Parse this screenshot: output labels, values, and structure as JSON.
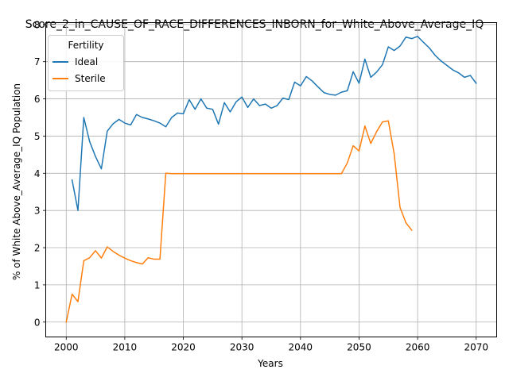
{
  "chart_data": {
    "type": "line",
    "title": "Score_2_in_CAUSE_OF_RACE_DIFFERENCES_INBORN_for_White_Above_Average_IQ",
    "xlabel": "Years",
    "ylabel": "% of White Above_Average_IQ Population",
    "xlim": [
      1996.5,
      2073.5
    ],
    "ylim": [
      -0.4,
      8.05
    ],
    "xticks": [
      2000,
      2010,
      2020,
      2030,
      2040,
      2050,
      2060,
      2070
    ],
    "yticks": [
      0,
      1,
      2,
      3,
      4,
      5,
      6,
      7,
      8
    ],
    "grid": true,
    "legend": {
      "title": "Fertility",
      "position": "top-left"
    },
    "series": [
      {
        "name": "Ideal",
        "color": "#1f77b4",
        "x": [
          2001,
          2002,
          2003,
          2004,
          2005,
          2006,
          2007,
          2008,
          2009,
          2010,
          2011,
          2012,
          2013,
          2014,
          2015,
          2016,
          2017,
          2018,
          2019,
          2020,
          2021,
          2022,
          2023,
          2024,
          2025,
          2026,
          2027,
          2028,
          2029,
          2030,
          2031,
          2032,
          2033,
          2034,
          2035,
          2036,
          2037,
          2038,
          2039,
          2040,
          2041,
          2042,
          2043,
          2044,
          2045,
          2046,
          2047,
          2048,
          2049,
          2050,
          2051,
          2052,
          2053,
          2054,
          2055,
          2056,
          2057,
          2058,
          2059,
          2060,
          2061,
          2062,
          2063,
          2064,
          2065,
          2066,
          2067,
          2068,
          2069,
          2070
        ],
        "y": [
          3.82,
          3.0,
          5.5,
          4.85,
          4.45,
          4.12,
          5.13,
          5.33,
          5.45,
          5.35,
          5.3,
          5.58,
          5.5,
          5.46,
          5.41,
          5.35,
          5.25,
          5.5,
          5.62,
          5.6,
          5.98,
          5.72,
          6.0,
          5.75,
          5.72,
          5.32,
          5.9,
          5.65,
          5.92,
          6.05,
          5.77,
          6.0,
          5.82,
          5.86,
          5.75,
          5.82,
          6.02,
          5.98,
          6.45,
          6.35,
          6.6,
          6.48,
          6.32,
          6.17,
          6.12,
          6.1,
          6.18,
          6.22,
          6.73,
          6.42,
          7.07,
          6.58,
          6.72,
          6.92,
          7.4,
          7.3,
          7.42,
          7.66,
          7.62,
          7.68,
          7.52,
          7.37,
          7.17,
          7.02,
          6.9,
          6.78,
          6.7,
          6.58,
          6.63,
          6.42
        ]
      },
      {
        "name": "Sterile",
        "color": "#ff7f0e",
        "x": [
          2000,
          2001,
          2002,
          2003,
          2004,
          2005,
          2006,
          2007,
          2008,
          2009,
          2010,
          2011,
          2012,
          2013,
          2014,
          2015,
          2016,
          2017,
          2018,
          2019,
          2020,
          2021,
          2022,
          2023,
          2024,
          2025,
          2026,
          2027,
          2028,
          2029,
          2030,
          2031,
          2032,
          2033,
          2034,
          2035,
          2036,
          2037,
          2038,
          2039,
          2040,
          2041,
          2042,
          2043,
          2044,
          2045,
          2046,
          2047,
          2048,
          2049,
          2050,
          2051,
          2052,
          2053,
          2054,
          2055,
          2056,
          2057,
          2058,
          2059
        ],
        "y": [
          0.0,
          0.75,
          0.55,
          1.65,
          1.73,
          1.92,
          1.72,
          2.02,
          1.9,
          1.8,
          1.72,
          1.65,
          1.6,
          1.56,
          1.73,
          1.69,
          1.69,
          4.0,
          3.99,
          3.99,
          3.99,
          3.99,
          3.99,
          3.99,
          3.99,
          3.99,
          3.99,
          3.99,
          3.99,
          3.99,
          3.99,
          3.99,
          3.99,
          3.99,
          3.99,
          3.99,
          3.99,
          3.99,
          3.99,
          3.99,
          3.99,
          3.99,
          3.99,
          3.99,
          3.99,
          3.99,
          3.99,
          3.99,
          4.28,
          4.74,
          4.6,
          5.27,
          4.8,
          5.12,
          5.38,
          5.41,
          4.52,
          3.08,
          2.67,
          2.47
        ]
      }
    ]
  }
}
